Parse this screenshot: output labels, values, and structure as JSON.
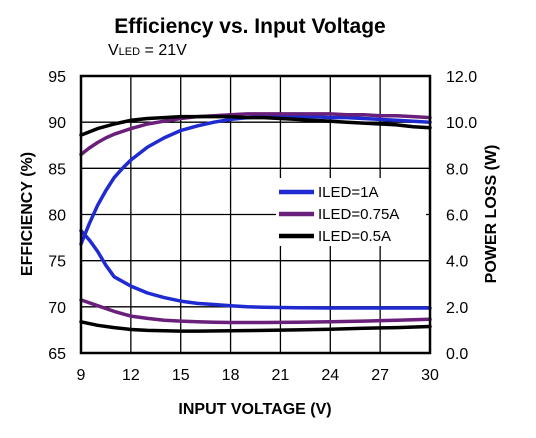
{
  "chart_data": {
    "type": "line",
    "title": "Efficiency vs. Input Voltage",
    "subtitle": {
      "main": "V",
      "sub": "LED",
      "rest": " = 21V"
    },
    "xlabel": "INPUT VOLTAGE (V)",
    "ylabel_left": "EFFICIENCY (%)",
    "ylabel_right": "POWER LOSS (W)",
    "xlim": [
      9,
      30
    ],
    "ylim_left": [
      65,
      95
    ],
    "ylim_right": [
      0,
      12
    ],
    "x_ticks": [
      "9",
      "12",
      "15",
      "18",
      "21",
      "24",
      "27",
      "30"
    ],
    "y_ticks_left": [
      "95",
      "90",
      "85",
      "80",
      "75",
      "70",
      "65"
    ],
    "y_ticks_right": [
      "12.0",
      "10.0",
      "8.0",
      "6.0",
      "4.0",
      "2.0",
      "0.0"
    ],
    "grid": true,
    "legend_position": "center-right",
    "series": [
      {
        "name": "ILED=1A",
        "color": "#1f2bd0",
        "axis": "left",
        "kind": "efficiency",
        "x": [
          9,
          9.5,
          10,
          10.5,
          11,
          11.5,
          12,
          13,
          14,
          15,
          16,
          17,
          18,
          19,
          20,
          21,
          22,
          23,
          24,
          25,
          26,
          27,
          28,
          29,
          30
        ],
        "y": [
          76.8,
          79.0,
          81.0,
          82.6,
          84.0,
          85.0,
          85.9,
          87.3,
          88.3,
          89.1,
          89.6,
          90.0,
          90.3,
          90.5,
          90.6,
          90.6,
          90.6,
          90.6,
          90.5,
          90.5,
          90.4,
          90.3,
          90.2,
          90.1,
          90.0
        ]
      },
      {
        "name": "ILED=0.75A",
        "color": "#6a1f7a",
        "axis": "left",
        "kind": "efficiency",
        "x": [
          9,
          9.5,
          10,
          10.5,
          11,
          12,
          13,
          14,
          15,
          16,
          17,
          18,
          19,
          20,
          21,
          22,
          23,
          24,
          25,
          26,
          27,
          28,
          29,
          30
        ],
        "y": [
          86.5,
          87.2,
          87.8,
          88.3,
          88.7,
          89.3,
          89.8,
          90.1,
          90.4,
          90.6,
          90.7,
          90.8,
          90.9,
          90.9,
          90.9,
          90.9,
          90.9,
          90.9,
          90.8,
          90.8,
          90.7,
          90.7,
          90.6,
          90.5
        ]
      },
      {
        "name": "ILED=0.5A",
        "color": "#000000",
        "axis": "left",
        "kind": "efficiency",
        "x": [
          9,
          10,
          11,
          12,
          13,
          14,
          15,
          16,
          17,
          18,
          19,
          20,
          21,
          22,
          23,
          24,
          25,
          26,
          27,
          28,
          29,
          30
        ],
        "y": [
          88.6,
          89.3,
          89.8,
          90.2,
          90.4,
          90.5,
          90.6,
          90.6,
          90.6,
          90.6,
          90.5,
          90.5,
          90.4,
          90.3,
          90.2,
          90.1,
          90.0,
          89.9,
          89.8,
          89.7,
          89.5,
          89.4
        ]
      },
      {
        "name": "ILED=1A",
        "color": "#1f2bd0",
        "axis": "right",
        "kind": "power-loss",
        "x": [
          9,
          9.5,
          10,
          10.5,
          11,
          12,
          13,
          14,
          15,
          16,
          17,
          18,
          19,
          20,
          22,
          24,
          26,
          28,
          30
        ],
        "y": [
          5.3,
          4.9,
          4.4,
          3.8,
          3.3,
          2.9,
          2.6,
          2.4,
          2.25,
          2.15,
          2.1,
          2.05,
          2.0,
          1.98,
          1.96,
          1.95,
          1.95,
          1.95,
          1.95
        ]
      },
      {
        "name": "ILED=0.75A",
        "color": "#6a1f7a",
        "axis": "right",
        "kind": "power-loss",
        "x": [
          9,
          10,
          11,
          12,
          13,
          14,
          15,
          16,
          17,
          18,
          19,
          20,
          22,
          24,
          26,
          28,
          30
        ],
        "y": [
          2.3,
          2.05,
          1.8,
          1.6,
          1.5,
          1.42,
          1.38,
          1.35,
          1.33,
          1.32,
          1.32,
          1.32,
          1.33,
          1.35,
          1.38,
          1.42,
          1.46
        ]
      },
      {
        "name": "ILED=0.5A",
        "color": "#000000",
        "axis": "right",
        "kind": "power-loss",
        "x": [
          9,
          10,
          11,
          12,
          13,
          14,
          15,
          16,
          18,
          20,
          22,
          24,
          26,
          28,
          30
        ],
        "y": [
          1.35,
          1.2,
          1.1,
          1.02,
          0.98,
          0.96,
          0.95,
          0.95,
          0.96,
          0.98,
          1.0,
          1.03,
          1.07,
          1.1,
          1.15
        ]
      }
    ],
    "legend": [
      {
        "label": "ILED=1A",
        "color": "#1f2bd0"
      },
      {
        "label": "ILED=0.75A",
        "color": "#6a1f7a"
      },
      {
        "label": "ILED=0.5A",
        "color": "#000000"
      }
    ]
  }
}
